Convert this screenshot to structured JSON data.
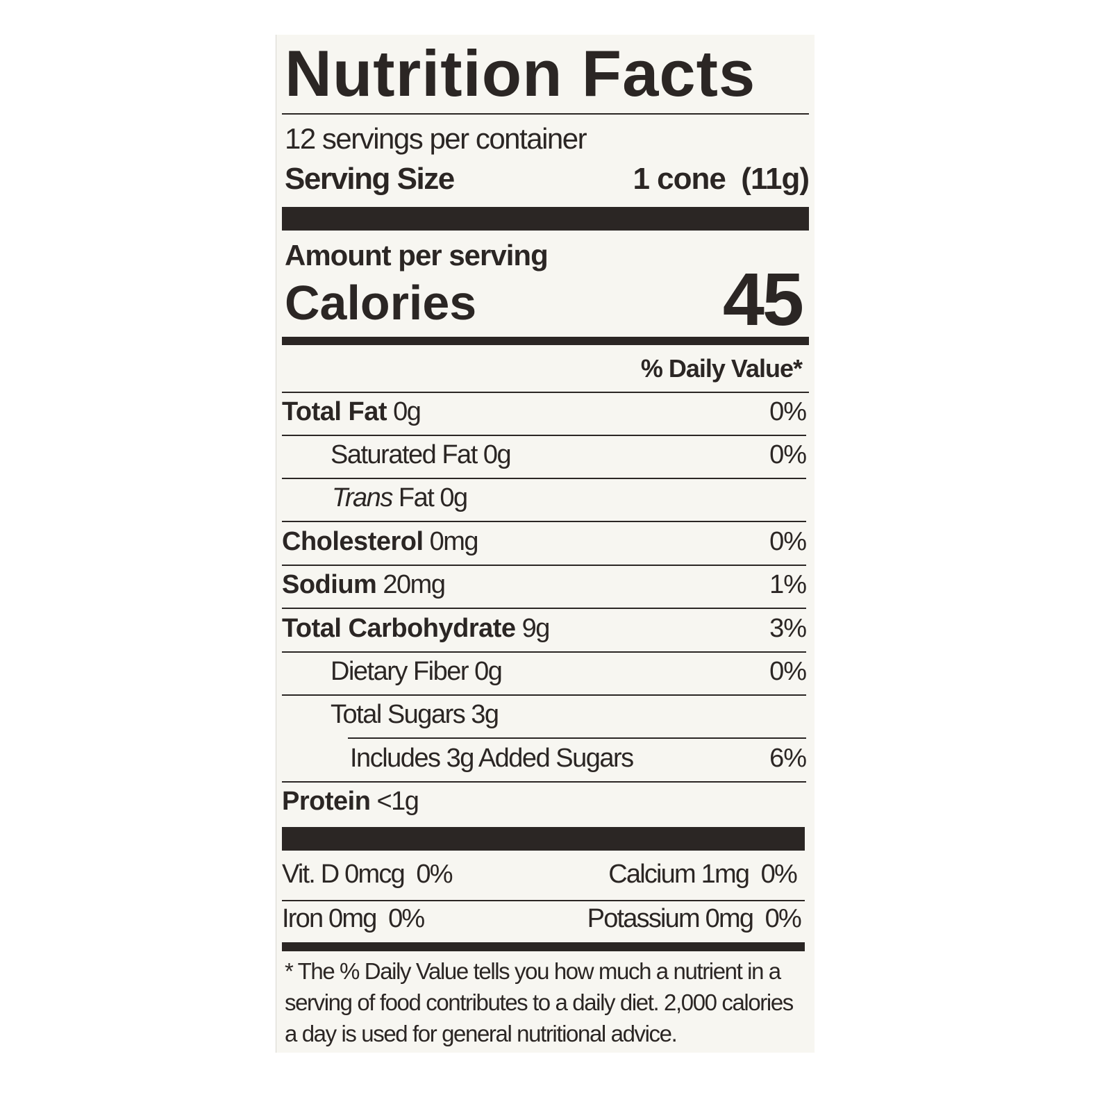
{
  "title": "Nutrition Facts",
  "servings_per_container": "12 servings per container",
  "serving_size": {
    "label": "Serving Size",
    "value": "1 cone  (11g)"
  },
  "amount_per_serving": "Amount per serving",
  "calories": {
    "label": "Calories",
    "value": "45"
  },
  "daily_value_header": "% Daily Value*",
  "nutrients": [
    {
      "name": "Total Fat",
      "amount": "0g",
      "dv": "0%"
    },
    {
      "name": "Saturated Fat",
      "amount": "0g",
      "dv": "0%"
    },
    {
      "name_italic": "Trans",
      "name": "Fat",
      "amount": "0g"
    },
    {
      "name": "Cholesterol",
      "amount": "0mg",
      "dv": "0%"
    },
    {
      "name": "Sodium",
      "amount": "20mg",
      "dv": "1%"
    },
    {
      "name": "Total Carbohydrate",
      "amount": "9g",
      "dv": "3%"
    },
    {
      "name": "Dietary Fiber",
      "amount": "0g",
      "dv": "0%"
    },
    {
      "name": "Total Sugars",
      "amount": "3g"
    },
    {
      "name": "Includes 3g Added Sugars",
      "dv": "6%"
    },
    {
      "name": "Protein",
      "amount": "<1g"
    }
  ],
  "micronutrients": [
    {
      "text": "Vit. D 0mcg  0%"
    },
    {
      "text": "Calcium 1mg  0%"
    },
    {
      "text": "Iron 0mg  0%"
    },
    {
      "text": "Potassium 0mg  0%"
    }
  ],
  "footnote": "* The % Daily Value tells you how much a nutrient in a serving of food contributes to a daily diet. 2,000 calories a day is used for general nutritional advice."
}
